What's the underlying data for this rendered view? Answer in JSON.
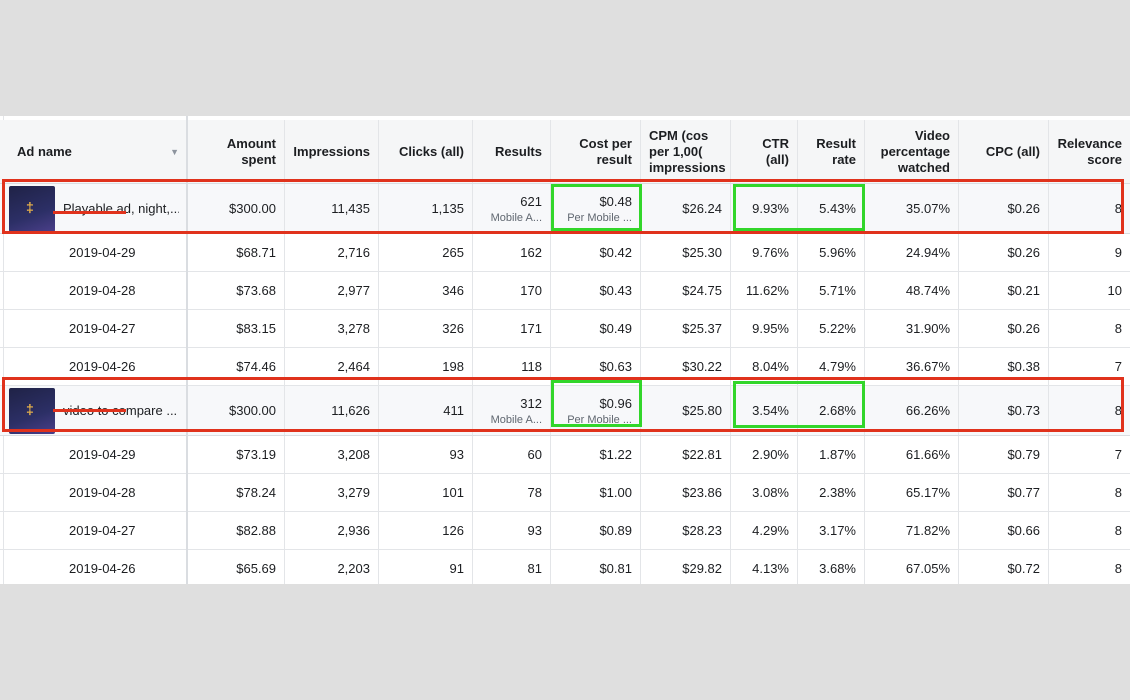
{
  "columns": {
    "ad_name": "Ad name",
    "amount_spent": "Amount spent",
    "impressions": "Impressions",
    "clicks": "Clicks (all)",
    "results": "Results",
    "cost_per_result": [
      "Cost per",
      "result"
    ],
    "cpm": [
      "CPM (cos",
      "per 1,00(",
      "impressions"
    ],
    "ctr": [
      "CTR",
      "(all)"
    ],
    "result_rate": [
      "Result",
      "rate"
    ],
    "video_pct": [
      "Video",
      "percentage",
      "watched"
    ],
    "cpc": "CPC (all)",
    "relevance": [
      "Relevance",
      "score"
    ]
  },
  "ads": [
    {
      "name": "Playable ad, night,...",
      "totals": {
        "amount": "$300.00",
        "impressions": "11,435",
        "clicks": "1,135",
        "results": "621",
        "results_sub": "Mobile A...",
        "cost": "$0.48",
        "cost_sub": "Per Mobile ...",
        "cpm": "$26.24",
        "ctr": "9.93%",
        "result_rate": "5.43%",
        "video": "35.07%",
        "cpc": "$0.26",
        "relevance": "8"
      },
      "days": [
        {
          "date": "2019-04-29",
          "amount": "$68.71",
          "impressions": "2,716",
          "clicks": "265",
          "results": "162",
          "cost": "$0.42",
          "cpm": "$25.30",
          "ctr": "9.76%",
          "result_rate": "5.96%",
          "video": "24.94%",
          "cpc": "$0.26",
          "relevance": "9"
        },
        {
          "date": "2019-04-28",
          "amount": "$73.68",
          "impressions": "2,977",
          "clicks": "346",
          "results": "170",
          "cost": "$0.43",
          "cpm": "$24.75",
          "ctr": "11.62%",
          "result_rate": "5.71%",
          "video": "48.74%",
          "cpc": "$0.21",
          "relevance": "10"
        },
        {
          "date": "2019-04-27",
          "amount": "$83.15",
          "impressions": "3,278",
          "clicks": "326",
          "results": "171",
          "cost": "$0.49",
          "cpm": "$25.37",
          "ctr": "9.95%",
          "result_rate": "5.22%",
          "video": "31.90%",
          "cpc": "$0.26",
          "relevance": "8"
        },
        {
          "date": "2019-04-26",
          "amount": "$74.46",
          "impressions": "2,464",
          "clicks": "198",
          "results": "118",
          "cost": "$0.63",
          "cpm": "$30.22",
          "ctr": "8.04%",
          "result_rate": "4.79%",
          "video": "36.67%",
          "cpc": "$0.38",
          "relevance": "7"
        }
      ]
    },
    {
      "name": "video to compare ...",
      "totals": {
        "amount": "$300.00",
        "impressions": "11,626",
        "clicks": "411",
        "results": "312",
        "results_sub": "Mobile A...",
        "cost": "$0.96",
        "cost_sub": "Per Mobile ...",
        "cpm": "$25.80",
        "ctr": "3.54%",
        "result_rate": "2.68%",
        "video": "66.26%",
        "cpc": "$0.73",
        "relevance": "8"
      },
      "days": [
        {
          "date": "2019-04-29",
          "amount": "$73.19",
          "impressions": "3,208",
          "clicks": "93",
          "results": "60",
          "cost": "$1.22",
          "cpm": "$22.81",
          "ctr": "2.90%",
          "result_rate": "1.87%",
          "video": "61.66%",
          "cpc": "$0.79",
          "relevance": "7"
        },
        {
          "date": "2019-04-28",
          "amount": "$78.24",
          "impressions": "3,279",
          "clicks": "101",
          "results": "78",
          "cost": "$1.00",
          "cpm": "$23.86",
          "ctr": "3.08%",
          "result_rate": "2.38%",
          "video": "65.17%",
          "cpc": "$0.77",
          "relevance": "8"
        },
        {
          "date": "2019-04-27",
          "amount": "$82.88",
          "impressions": "2,936",
          "clicks": "126",
          "results": "93",
          "cost": "$0.89",
          "cpm": "$28.23",
          "ctr": "4.29%",
          "result_rate": "3.17%",
          "video": "71.82%",
          "cpc": "$0.66",
          "relevance": "8"
        },
        {
          "date": "2019-04-26",
          "amount": "$65.69",
          "impressions": "2,203",
          "clicks": "91",
          "results": "81",
          "cost": "$0.81",
          "cpm": "$29.82",
          "ctr": "4.13%",
          "result_rate": "3.68%",
          "video": "67.05%",
          "cpc": "$0.72",
          "relevance": "8"
        }
      ]
    }
  ],
  "colors": {
    "highlight_red": "#e0321c",
    "highlight_green": "#32d62a"
  },
  "icons": {
    "sort": "caret-down-icon",
    "thumbnail_glyph": "‡"
  }
}
